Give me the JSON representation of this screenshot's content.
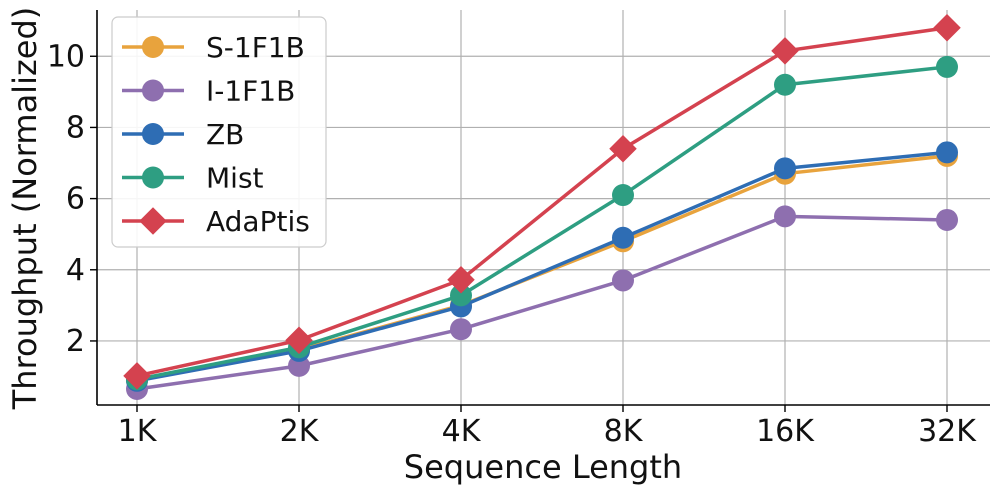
{
  "chart_data": {
    "type": "line",
    "title": "",
    "xlabel": "Sequence Length",
    "ylabel": "Throughput (Normalized)",
    "categories": [
      "1K",
      "2K",
      "4K",
      "8K",
      "16K",
      "32K"
    ],
    "ylim": [
      0.2,
      11.3
    ],
    "yticks": [
      2,
      4,
      6,
      8,
      10
    ],
    "grid": true,
    "legend_position": "top-left",
    "series": [
      {
        "name": "S-1F1B",
        "color": "#E8A33D",
        "marker": "circle",
        "values": [
          0.9,
          1.75,
          3.0,
          4.8,
          6.7,
          7.2
        ]
      },
      {
        "name": "I-1F1B",
        "color": "#8E6FAF",
        "marker": "circle",
        "values": [
          0.65,
          1.3,
          2.33,
          3.7,
          5.5,
          5.4
        ]
      },
      {
        "name": "ZB",
        "color": "#2E6DB4",
        "marker": "circle",
        "values": [
          0.88,
          1.72,
          2.97,
          4.9,
          6.85,
          7.3
        ]
      },
      {
        "name": "Mist",
        "color": "#2E9E82",
        "marker": "circle",
        "values": [
          0.92,
          1.82,
          3.28,
          6.1,
          9.2,
          9.7
        ]
      },
      {
        "name": "AdaPtis",
        "color": "#D4424F",
        "marker": "diamond",
        "values": [
          1.02,
          2.02,
          3.72,
          7.4,
          10.15,
          10.8
        ]
      }
    ]
  }
}
